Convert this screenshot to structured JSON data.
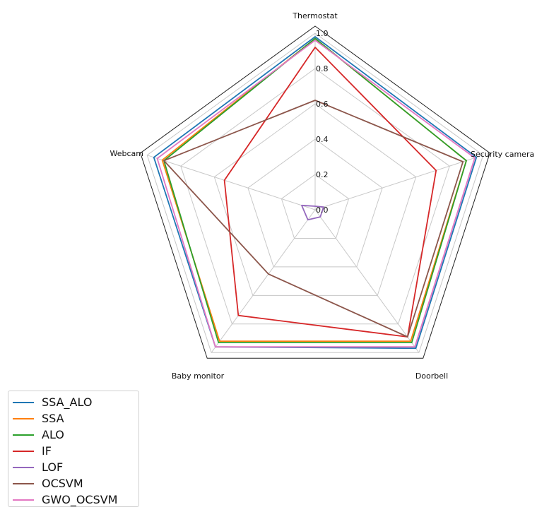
{
  "chart_data": {
    "type": "radar",
    "axes": [
      "Thermostat",
      "Security camera",
      "Doorbell",
      "Baby monitor",
      "Webcam"
    ],
    "rlim": [
      0,
      1.0
    ],
    "ticks": [
      "0.0",
      "0.2",
      "0.4",
      "0.6",
      "0.8",
      "1.0"
    ],
    "tick_values": [
      0,
      0.2,
      0.4,
      0.6,
      0.8,
      1.0
    ],
    "grid": true,
    "legend_position": "bottom-left",
    "series": [
      {
        "name": "SSA_ALO",
        "color": "#1f77b4",
        "values": [
          0.98,
          0.96,
          0.97,
          0.96,
          0.96
        ]
      },
      {
        "name": "SSA",
        "color": "#ff7f0e",
        "values": [
          0.97,
          0.9,
          0.92,
          0.92,
          0.91
        ]
      },
      {
        "name": "ALO",
        "color": "#2ca02c",
        "values": [
          0.97,
          0.9,
          0.93,
          0.93,
          0.9
        ]
      },
      {
        "name": "IF",
        "color": "#d62728",
        "values": [
          0.92,
          0.72,
          0.89,
          0.74,
          0.54
        ]
      },
      {
        "name": "LOF",
        "color": "#9467bd",
        "values": [
          0.02,
          0.05,
          0.05,
          0.07,
          0.08
        ]
      },
      {
        "name": "OCSVM",
        "color": "#8c564b",
        "values": [
          0.62,
          0.88,
          0.89,
          0.45,
          0.9
        ]
      },
      {
        "name": "GWO_OCSVM",
        "color": "#e377c2",
        "values": [
          0.96,
          0.95,
          0.96,
          0.96,
          0.94
        ]
      }
    ]
  }
}
